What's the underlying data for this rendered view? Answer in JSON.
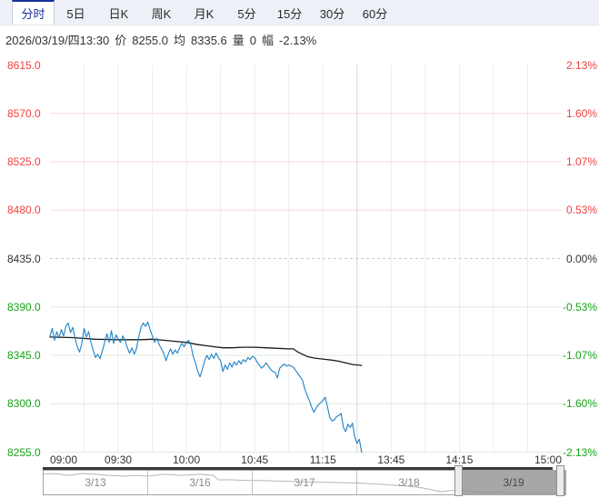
{
  "tabs": {
    "items": [
      {
        "label": "分时",
        "active": true
      },
      {
        "label": "5日",
        "active": false
      },
      {
        "label": "日K",
        "active": false
      },
      {
        "label": "周K",
        "active": false
      },
      {
        "label": "月K",
        "active": false
      },
      {
        "label": "5分",
        "active": false
      },
      {
        "label": "15分",
        "active": false
      },
      {
        "label": "30分",
        "active": false
      },
      {
        "label": "60分",
        "active": false
      }
    ]
  },
  "info": {
    "datetime": "2026/03/19/四13:30",
    "price_label": "价",
    "price": "8255.0",
    "avg_label": "均",
    "avg": "8335.6",
    "volume_label": "量",
    "volume": "0",
    "range_label": "幅",
    "range": "-2.13%"
  },
  "axis": {
    "left": [
      {
        "text": "8615.0",
        "color": "#f04040"
      },
      {
        "text": "8570.0",
        "color": "#f04040"
      },
      {
        "text": "8525.0",
        "color": "#f04040"
      },
      {
        "text": "8480.0",
        "color": "#f04040"
      },
      {
        "text": "8435.0",
        "color": "#333333"
      },
      {
        "text": "8390.0",
        "color": "#16a316"
      },
      {
        "text": "8345.0",
        "color": "#16a316"
      },
      {
        "text": "8300.0",
        "color": "#16a316"
      },
      {
        "text": "8255.0",
        "color": "#16a316"
      }
    ],
    "right": [
      {
        "text": "2.13%",
        "color": "#f04040"
      },
      {
        "text": "1.60%",
        "color": "#f04040"
      },
      {
        "text": "1.07%",
        "color": "#f04040"
      },
      {
        "text": "0.53%",
        "color": "#f04040"
      },
      {
        "text": "0.00%",
        "color": "#333333"
      },
      {
        "text": "-0.53%",
        "color": "#16a316"
      },
      {
        "text": "-1.07%",
        "color": "#16a316"
      },
      {
        "text": "-1.60%",
        "color": "#16a316"
      },
      {
        "text": "-2.13%",
        "color": "#16a316"
      }
    ],
    "time": [
      {
        "label": "09:00",
        "m": 0
      },
      {
        "label": "09:30",
        "m": 30
      },
      {
        "label": "10:00",
        "m": 60
      },
      {
        "label": "10:45",
        "m": 90
      },
      {
        "label": "11:15",
        "m": 120
      },
      {
        "label": "13:45",
        "m": 150
      },
      {
        "label": "14:15",
        "m": 180
      },
      {
        "label": "15:00",
        "m": 225
      }
    ]
  },
  "navigator": {
    "dates": [
      "3/13",
      "3/16",
      "3/17",
      "3/18",
      "3/19"
    ],
    "selected_index": 4,
    "selected_date": "3/19"
  },
  "colors": {
    "price_line": "#1f82c5",
    "avg_line": "#1a1a1a",
    "up": "#f04040",
    "down": "#16a316",
    "grid_red": "#f6dbdb",
    "grid_green": "#dcecdc",
    "grid_mid": "#c9c9c9",
    "grid_vertical": "#ededed",
    "grid_session_break": "#d5d5d5",
    "sparkline": "#b5b5b5",
    "tab_active": "#1b2f9e"
  },
  "chart_data": {
    "type": "line",
    "x_unit": "trading minutes since 09:00 (break 11:30-13:30 removed)",
    "x_range": [
      0,
      225
    ],
    "x_ticks": [
      {
        "m": 0,
        "label": "09:00"
      },
      {
        "m": 30,
        "label": "09:30"
      },
      {
        "m": 60,
        "label": "10:00"
      },
      {
        "m": 90,
        "label": "10:45"
      },
      {
        "m": 120,
        "label": "11:15"
      },
      {
        "m": 150,
        "label": "13:45"
      },
      {
        "m": 180,
        "label": "14:15"
      },
      {
        "m": 225,
        "label": "15:00"
      }
    ],
    "ylim": [
      8255.0,
      8615.0
    ],
    "y_ticks_price": [
      8615.0,
      8570.0,
      8525.0,
      8480.0,
      8435.0,
      8390.0,
      8345.0,
      8300.0,
      8255.0
    ],
    "y_ticks_pct": [
      "2.13%",
      "1.60%",
      "1.07%",
      "0.53%",
      "0.00%",
      "-0.53%",
      "-1.07%",
      "-1.60%",
      "-2.13%"
    ],
    "prev_close": 8435.0,
    "last_price": 8255.0,
    "avg_price": 8335.6,
    "change_pct": "-2.13%",
    "grid": true,
    "series": [
      {
        "name": "价",
        "color": "#1f82c5",
        "points": [
          [
            0,
            8363
          ],
          [
            1,
            8370
          ],
          [
            2,
            8359
          ],
          [
            3,
            8367
          ],
          [
            4,
            8361
          ],
          [
            5,
            8369
          ],
          [
            6,
            8363
          ],
          [
            7,
            8372
          ],
          [
            8,
            8375
          ],
          [
            9,
            8366
          ],
          [
            10,
            8371
          ],
          [
            11,
            8361
          ],
          [
            12,
            8353
          ],
          [
            13,
            8348
          ],
          [
            14,
            8356
          ],
          [
            15,
            8370
          ],
          [
            16,
            8362
          ],
          [
            17,
            8367
          ],
          [
            18,
            8357
          ],
          [
            19,
            8350
          ],
          [
            20,
            8343
          ],
          [
            21,
            8346
          ],
          [
            22,
            8342
          ],
          [
            23,
            8349
          ],
          [
            24,
            8357
          ],
          [
            25,
            8365
          ],
          [
            26,
            8357
          ],
          [
            27,
            8368
          ],
          [
            28,
            8356
          ],
          [
            29,
            8364
          ],
          [
            30,
            8360
          ],
          [
            31,
            8357
          ],
          [
            32,
            8363
          ],
          [
            33,
            8359
          ],
          [
            34,
            8352
          ],
          [
            35,
            8347
          ],
          [
            36,
            8352
          ],
          [
            37,
            8346
          ],
          [
            38,
            8351
          ],
          [
            39,
            8362
          ],
          [
            40,
            8371
          ],
          [
            41,
            8375
          ],
          [
            42,
            8372
          ],
          [
            43,
            8376
          ],
          [
            44,
            8369
          ],
          [
            45,
            8363
          ],
          [
            46,
            8357
          ],
          [
            47,
            8361
          ],
          [
            48,
            8355
          ],
          [
            49,
            8351
          ],
          [
            50,
            8347
          ],
          [
            51,
            8340
          ],
          [
            52,
            8346
          ],
          [
            53,
            8351
          ],
          [
            54,
            8346
          ],
          [
            55,
            8350
          ],
          [
            56,
            8347
          ],
          [
            57,
            8352
          ],
          [
            58,
            8356
          ],
          [
            59,
            8353
          ],
          [
            60,
            8357
          ],
          [
            61,
            8359
          ],
          [
            62,
            8354
          ],
          [
            63,
            8344
          ],
          [
            64,
            8338
          ],
          [
            65,
            8330
          ],
          [
            66,
            8325
          ],
          [
            67,
            8332
          ],
          [
            68,
            8340
          ],
          [
            69,
            8345
          ],
          [
            70,
            8341
          ],
          [
            71,
            8346
          ],
          [
            72,
            8342
          ],
          [
            73,
            8347
          ],
          [
            74,
            8343
          ],
          [
            75,
            8340
          ],
          [
            76,
            8330
          ],
          [
            77,
            8336
          ],
          [
            78,
            8332
          ],
          [
            79,
            8338
          ],
          [
            80,
            8334
          ],
          [
            81,
            8339
          ],
          [
            82,
            8336
          ],
          [
            83,
            8340
          ],
          [
            84,
            8337
          ],
          [
            85,
            8341
          ],
          [
            86,
            8339
          ],
          [
            87,
            8343
          ],
          [
            88,
            8341
          ],
          [
            89,
            8344
          ],
          [
            90,
            8343
          ],
          [
            91,
            8339
          ],
          [
            92,
            8336
          ],
          [
            93,
            8333
          ],
          [
            94,
            8335
          ],
          [
            95,
            8338
          ],
          [
            96,
            8335
          ],
          [
            97,
            8332
          ],
          [
            98,
            8330
          ],
          [
            99,
            8329
          ],
          [
            100,
            8324
          ],
          [
            101,
            8333
          ],
          [
            102,
            8335
          ],
          [
            103,
            8337
          ],
          [
            104,
            8335
          ],
          [
            105,
            8336
          ],
          [
            106,
            8335
          ],
          [
            107,
            8334
          ],
          [
            108,
            8331
          ],
          [
            109,
            8328
          ],
          [
            110,
            8325
          ],
          [
            111,
            8322
          ],
          [
            112,
            8314
          ],
          [
            113,
            8308
          ],
          [
            114,
            8303
          ],
          [
            115,
            8297
          ],
          [
            116,
            8292
          ],
          [
            117,
            8296
          ],
          [
            118,
            8299
          ],
          [
            119,
            8301
          ],
          [
            120,
            8303
          ],
          [
            121,
            8306
          ],
          [
            122,
            8297
          ],
          [
            123,
            8287
          ],
          [
            124,
            8284
          ],
          [
            125,
            8285
          ],
          [
            126,
            8288
          ],
          [
            127,
            8289
          ],
          [
            128,
            8291
          ],
          [
            129,
            8278
          ],
          [
            130,
            8274
          ],
          [
            131,
            8281
          ],
          [
            132,
            8278
          ],
          [
            133,
            8282
          ],
          [
            134,
            8269
          ],
          [
            135,
            8263
          ],
          [
            136,
            8267
          ],
          [
            137,
            8255
          ]
        ]
      },
      {
        "name": "均",
        "color": "#1a1a1a",
        "points": [
          [
            0,
            8362
          ],
          [
            10,
            8361.5
          ],
          [
            20,
            8360
          ],
          [
            30,
            8359.5
          ],
          [
            40,
            8359.5
          ],
          [
            45,
            8360
          ],
          [
            50,
            8359
          ],
          [
            55,
            8358
          ],
          [
            60,
            8357
          ],
          [
            65,
            8355
          ],
          [
            70,
            8353.5
          ],
          [
            76,
            8352
          ],
          [
            80,
            8352
          ],
          [
            85,
            8352.5
          ],
          [
            90,
            8352.5
          ],
          [
            95,
            8352
          ],
          [
            100,
            8351.5
          ],
          [
            105,
            8351
          ],
          [
            107,
            8351
          ],
          [
            109,
            8348
          ],
          [
            111,
            8346
          ],
          [
            113,
            8344
          ],
          [
            116,
            8342.5
          ],
          [
            120,
            8341.5
          ],
          [
            124,
            8340.5
          ],
          [
            127,
            8339.5
          ],
          [
            129,
            8338.5
          ],
          [
            131,
            8337.5
          ],
          [
            133,
            8336.5
          ],
          [
            135,
            8336
          ],
          [
            137,
            8335.6
          ]
        ]
      }
    ],
    "navigator_sparkline": [
      [
        0.0,
        0.17
      ],
      [
        0.023,
        0.14
      ],
      [
        0.049,
        0.21
      ],
      [
        0.075,
        0.14
      ],
      [
        0.101,
        0.17
      ],
      [
        0.127,
        0.21
      ],
      [
        0.153,
        0.24
      ],
      [
        0.179,
        0.21
      ],
      [
        0.2,
        0.24
      ],
      [
        0.231,
        0.17
      ],
      [
        0.266,
        0.21
      ],
      [
        0.3,
        0.17
      ],
      [
        0.326,
        0.21
      ],
      [
        0.335,
        0.38
      ],
      [
        0.361,
        0.38
      ],
      [
        0.387,
        0.4
      ],
      [
        0.422,
        0.41
      ],
      [
        0.457,
        0.43
      ],
      [
        0.491,
        0.45
      ],
      [
        0.526,
        0.47
      ],
      [
        0.561,
        0.48
      ],
      [
        0.599,
        0.5
      ],
      [
        0.622,
        0.52
      ],
      [
        0.648,
        0.55
      ],
      [
        0.674,
        0.59
      ],
      [
        0.7,
        0.62
      ],
      [
        0.726,
        0.69
      ],
      [
        0.743,
        0.76
      ],
      [
        0.76,
        0.83
      ],
      [
        0.778,
        0.79
      ],
      [
        0.8,
        0.79
      ],
      [
        0.821,
        0.83
      ],
      [
        0.847,
        0.86
      ],
      [
        0.873,
        0.84
      ],
      [
        0.899,
        0.88
      ],
      [
        0.925,
        0.9
      ],
      [
        0.96,
        0.9
      ],
      [
        0.995,
        0.91
      ]
    ]
  }
}
